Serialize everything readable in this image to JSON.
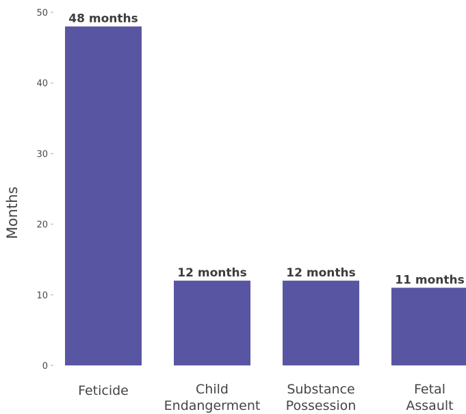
{
  "chart_data": {
    "type": "bar",
    "title": "",
    "xlabel": "",
    "ylabel": "Months",
    "ylim": [
      0,
      50
    ],
    "y_ticks": [
      0,
      10,
      20,
      30,
      40,
      50
    ],
    "grid": false,
    "bar_color": "#5856a2",
    "categories": [
      [
        "Feticide"
      ],
      [
        "Child",
        "Endangerment"
      ],
      [
        "Substance",
        "Possession"
      ],
      [
        "Fetal",
        "Assault"
      ]
    ],
    "values": [
      48,
      12,
      12,
      11
    ],
    "data_labels": [
      "48 months",
      "12 months",
      "12 months",
      "11 months"
    ]
  }
}
